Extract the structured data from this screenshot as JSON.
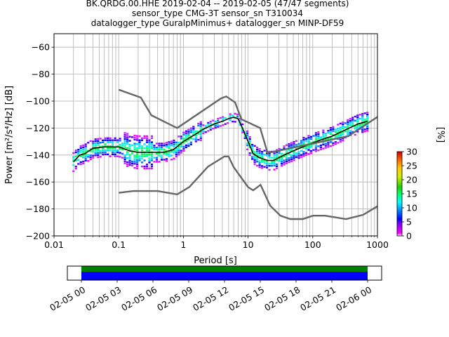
{
  "title_lines": [
    "BK.QRDG.00.HHE   2019-02-04 -- 2019-02-05  (47/47 segments)",
    "sensor_type CMG-3T sensor_sn T310034",
    "datalogger_type GuralpMinimus+ datalogger_sn MINP-DF59"
  ],
  "chart_data": {
    "type": "heatmap",
    "xlabel": "Period [s]",
    "ylabel": "Power [m²/s⁴/Hz] [dB]",
    "x_scale": "log",
    "xlim": [
      0.01,
      1000
    ],
    "ylim": [
      -200,
      -50
    ],
    "x_ticks": [
      {
        "value": 0.01,
        "label": "0.01"
      },
      {
        "value": 0.1,
        "label": "0.1"
      },
      {
        "value": 1,
        "label": "1"
      },
      {
        "value": 10,
        "label": "10"
      },
      {
        "value": 100,
        "label": "100"
      },
      {
        "value": 1000,
        "label": "1000"
      }
    ],
    "y_ticks": [
      -60,
      -80,
      -100,
      -120,
      -140,
      -160,
      -180,
      -200
    ],
    "grid": true,
    "colorbar": {
      "label": "[%]",
      "range": [
        0,
        30
      ],
      "ticks": [
        0,
        5,
        10,
        15,
        20,
        25,
        30
      ]
    },
    "series": [
      {
        "role": "mode",
        "color": "#000000",
        "x": [
          0.02,
          0.025,
          0.03,
          0.04,
          0.06,
          0.08,
          0.1,
          0.15,
          0.2,
          0.3,
          0.5,
          0.7,
          1,
          1.5,
          2,
          3,
          4,
          5,
          6,
          7,
          8,
          10,
          12,
          15,
          20,
          25,
          30,
          40,
          50,
          70,
          100,
          150,
          200,
          300,
          500,
          700
        ],
        "y": [
          -145,
          -140,
          -139,
          -135,
          -134,
          -134,
          -134,
          -137,
          -138,
          -138,
          -138,
          -136,
          -130,
          -125,
          -121,
          -117,
          -115,
          -113,
          -112,
          -113,
          -119,
          -130,
          -139,
          -142,
          -144,
          -144,
          -142,
          -139,
          -137,
          -134,
          -131,
          -128,
          -126,
          -122,
          -117,
          -115
        ]
      },
      {
        "role": "high-noise-model",
        "color": "#666666",
        "x": [
          0.1,
          0.22,
          0.32,
          0.8,
          3.8,
          4.6,
          6.3,
          7.9,
          15.4,
          20,
          354.8,
          10000
        ],
        "y": [
          -91.5,
          -97.4,
          -110.5,
          -120,
          -98,
          -96.5,
          -101,
          -113.5,
          -120,
          -138.5,
          -126,
          -80.1
        ]
      },
      {
        "role": "low-noise-model",
        "color": "#666666",
        "x": [
          0.1,
          0.17,
          0.4,
          0.8,
          1.24,
          2.4,
          4.3,
          5,
          6,
          10,
          12,
          15.6,
          21.9,
          31.6,
          45,
          70,
          101,
          154,
          328,
          600,
          1000
        ],
        "y": [
          -168,
          -166.7,
          -166.7,
          -169.2,
          -163.7,
          -148.6,
          -141.1,
          -141.1,
          -149,
          -163.8,
          -166.2,
          -162.1,
          -177.5,
          -185,
          -187.5,
          -187.5,
          -185,
          -185,
          -187.5,
          -184.4,
          -178
        ]
      }
    ],
    "timeline": {
      "tick_labels": [
        "02-05 00",
        "02-05 03",
        "02-05 06",
        "02-05 09",
        "02-05 12",
        "02-05 15",
        "02-05 18",
        "02-05 21",
        "02-06 00"
      ],
      "segments_color": "#0000ff",
      "coverage_color": "#008000"
    }
  }
}
